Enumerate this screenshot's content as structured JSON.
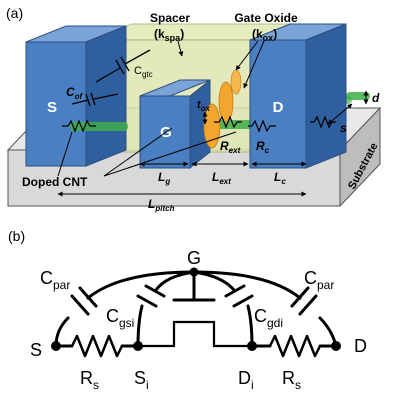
{
  "panel_a": {
    "label": "(a)",
    "spacer_title": "Spacer",
    "spacer_k": "(k",
    "spacer_k_sub": "spa",
    "gate_oxide_title": "Gate Oxide",
    "gate_oxide_k": "(k",
    "gate_oxide_k_sub": "ox",
    "close_paren": ")",
    "block_source": "S",
    "block_gate": "G",
    "block_drain": "D",
    "c_gtc": "C",
    "c_gtc_sub": "gtc",
    "c_of": "C",
    "c_of_sub": "of",
    "t_ox": "t",
    "t_ox_sub": "ox",
    "r_ext": "R",
    "r_ext_sub": "ext",
    "r_c": "R",
    "r_c_sub": "c",
    "d_label": "d",
    "s_label": "s",
    "doped_cnt": "Doped CNT",
    "substrate": "Substrate",
    "l_g": "L",
    "l_g_sub": "g",
    "l_ext": "L",
    "l_ext_sub": "ext",
    "l_c": "L",
    "l_c_sub": "c",
    "l_pitch": "L",
    "l_pitch_sub": "pitch"
  },
  "panel_b": {
    "label": "(b)",
    "node_g": "G",
    "node_s": "S",
    "node_d": "D",
    "node_si": "S",
    "node_si_sub": "i",
    "node_di": "D",
    "node_di_sub": "i",
    "c_par_left": "C",
    "c_par_left_sub": "par",
    "c_par_right": "C",
    "c_par_right_sub": "par",
    "c_gsi": "C",
    "c_gsi_sub": "gsi",
    "c_gdi": "C",
    "c_gdi_sub": "gdi",
    "r_s_left": "R",
    "r_s_left_sub": "s",
    "r_s_right": "R",
    "r_s_right_sub": "s"
  },
  "colors": {
    "block_front": "#4a7fc2",
    "block_top": "#7aa3d8",
    "block_side": "#2f5f9e",
    "spacer": "#dfe6b0",
    "gate_oxide": "#f2a62e",
    "substrate": "#d9d9d9",
    "cnt": "#3fae49",
    "ink": "#000000"
  }
}
